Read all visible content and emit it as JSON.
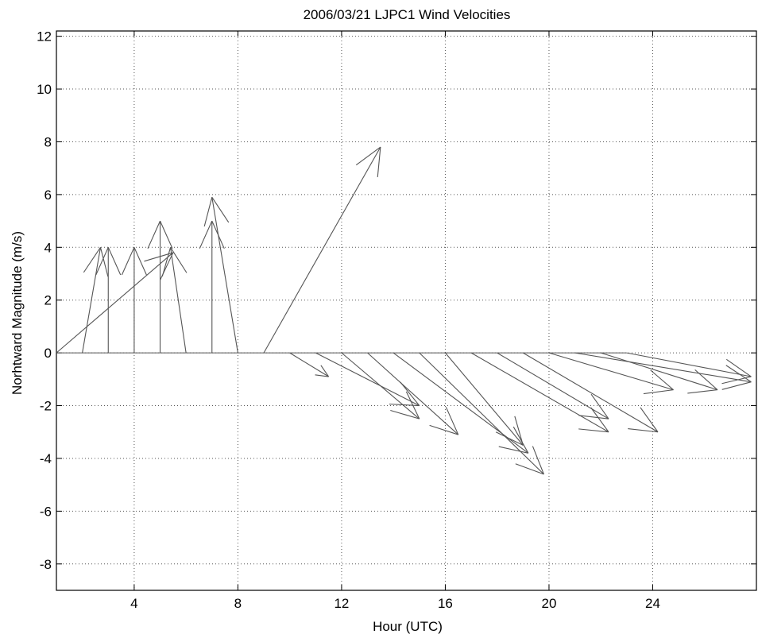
{
  "chart_data": {
    "type": "quiver",
    "title": "2006/03/21 LJPC1 Wind Velocities",
    "xlabel": "Hour (UTC)",
    "ylabel": "Norhtward Magnitude (m/s)",
    "xlim": [
      1,
      28
    ],
    "ylim": [
      -9,
      12.2
    ],
    "xticks": [
      4,
      8,
      12,
      16,
      20,
      24
    ],
    "yticks": [
      12,
      10,
      8,
      6,
      4,
      2,
      0,
      -2,
      -4,
      -6,
      -8
    ],
    "grid": true,
    "colors": {
      "arrow": "#555555",
      "axis": "#000000",
      "grid": "#555555"
    },
    "vectors": [
      {
        "x": 1,
        "u": 4.5,
        "v": 3.8
      },
      {
        "x": 2,
        "u": 0.7,
        "v": 4.0
      },
      {
        "x": 3,
        "u": 0.0,
        "v": 4.0
      },
      {
        "x": 4,
        "u": 0.0,
        "v": 4.0
      },
      {
        "x": 5,
        "u": 0.0,
        "v": 5.0
      },
      {
        "x": 6,
        "u": -0.6,
        "v": 4.0
      },
      {
        "x": 7,
        "u": 0.0,
        "v": 5.0
      },
      {
        "x": 8,
        "u": -1.0,
        "v": 5.9
      },
      {
        "x": 9,
        "u": 4.5,
        "v": 7.8
      },
      {
        "x": 10,
        "u": 1.5,
        "v": -0.9
      },
      {
        "x": 11,
        "u": 4.0,
        "v": -2.0
      },
      {
        "x": 12,
        "u": 3.0,
        "v": -2.5
      },
      {
        "x": 13,
        "u": 3.5,
        "v": -3.1
      },
      {
        "x": 14,
        "u": 5.2,
        "v": -3.8
      },
      {
        "x": 15,
        "u": 4.8,
        "v": -4.6
      },
      {
        "x": 16,
        "u": 3.0,
        "v": -3.5
      },
      {
        "x": 17,
        "u": 5.3,
        "v": -3.0
      },
      {
        "x": 18,
        "u": 4.3,
        "v": -2.5
      },
      {
        "x": 19,
        "u": 5.2,
        "v": -3.0
      },
      {
        "x": 20,
        "u": 4.8,
        "v": -1.4
      },
      {
        "x": 21,
        "u": 6.8,
        "v": -1.1
      },
      {
        "x": 22,
        "u": 4.5,
        "v": -1.4
      },
      {
        "x": 23,
        "u": 4.8,
        "v": -0.9
      }
    ]
  }
}
